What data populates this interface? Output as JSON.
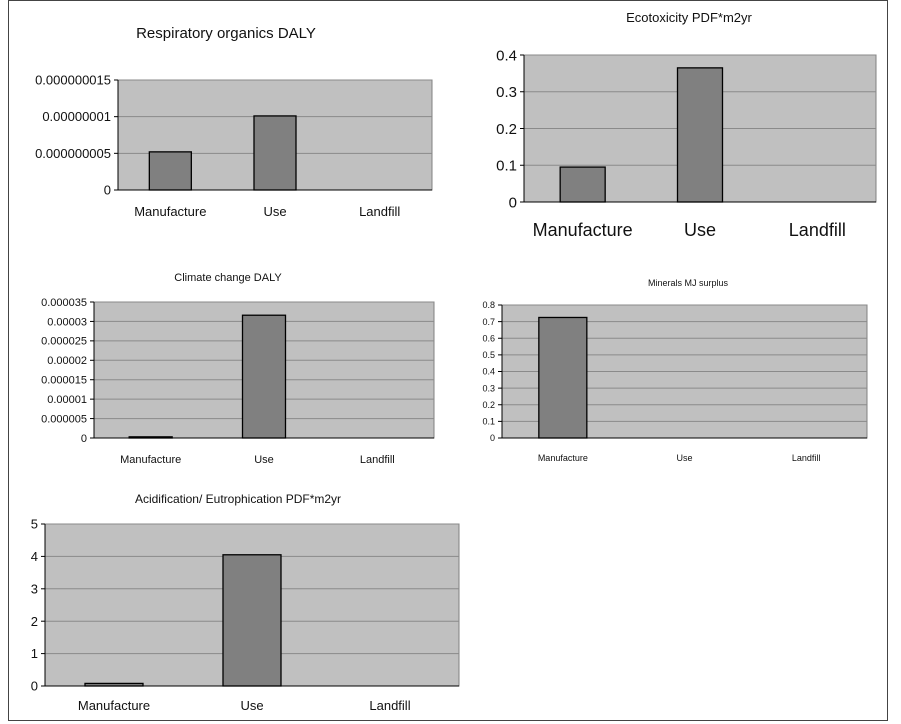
{
  "charts": [
    {
      "type": "bar",
      "title": "Respiratory organics DALY",
      "categories": [
        "Manufacture",
        "Use",
        "Landfill"
      ],
      "values": [
        5.2e-09,
        1.01e-08,
        0
      ],
      "ylim": [
        0,
        1.5e-08
      ],
      "yticks": [
        0,
        5e-09,
        1e-08,
        1.5e-08
      ],
      "ytick_labels": [
        "0",
        "0.000000005",
        "0.00000001",
        "0.000000015"
      ],
      "grid": true
    },
    {
      "type": "bar",
      "title": "Ecotoxicity PDF*m2yr",
      "categories": [
        "Manufacture",
        "Use",
        "Landfill"
      ],
      "values": [
        0.095,
        0.365,
        0
      ],
      "ylim": [
        0,
        0.4
      ],
      "yticks": [
        0,
        0.1,
        0.2,
        0.3,
        0.4
      ],
      "ytick_labels": [
        "0",
        "0.1",
        "0.2",
        "0.3",
        "0.4"
      ],
      "grid": true
    },
    {
      "type": "bar",
      "title": "Climate change DALY",
      "categories": [
        "Manufacture",
        "Use",
        "Landfill"
      ],
      "values": [
        3e-07,
        3.16e-05,
        0
      ],
      "ylim": [
        0,
        3.5e-05
      ],
      "yticks": [
        0,
        5e-06,
        1e-05,
        1.5e-05,
        2e-05,
        2.5e-05,
        3e-05,
        3.5e-05
      ],
      "ytick_labels": [
        "0",
        "0.000005",
        "0.00001",
        "0.000015",
        "0.00002",
        "0.000025",
        "0.00003",
        "0.000035"
      ],
      "grid": true
    },
    {
      "type": "bar",
      "title": "Minerals MJ surplus",
      "categories": [
        "Manufacture",
        "Use",
        "Landfill"
      ],
      "values": [
        0.725,
        0,
        0
      ],
      "ylim": [
        0,
        0.8
      ],
      "yticks": [
        0,
        0.1,
        0.2,
        0.3,
        0.4,
        0.5,
        0.6,
        0.7,
        0.8
      ],
      "ytick_labels": [
        "0",
        "0.1",
        "0.2",
        "0.3",
        "0.4",
        "0.5",
        "0.6",
        "0.7",
        "0.8"
      ],
      "grid": true
    },
    {
      "type": "bar",
      "title": "Acidification/ Eutrophication PDF*m2yr",
      "categories": [
        "Manufacture",
        "Use",
        "Landfill"
      ],
      "values": [
        0.08,
        4.05,
        0
      ],
      "ylim": [
        0,
        5
      ],
      "yticks": [
        0,
        1,
        2,
        3,
        4,
        5
      ],
      "ytick_labels": [
        "0",
        "1",
        "2",
        "3",
        "4",
        "5"
      ],
      "grid": true
    }
  ],
  "colors": {
    "plot_bg": "#c0c0c0",
    "bar_fill": "#808080",
    "bar_stroke": "#000000",
    "grid": "#8a8a8a"
  }
}
